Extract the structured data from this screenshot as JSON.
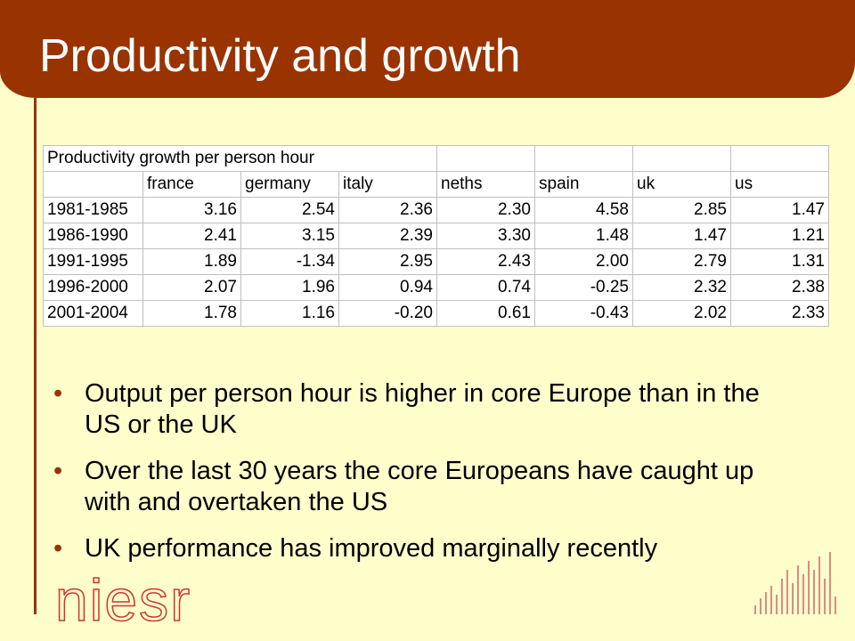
{
  "header": {
    "title": "Productivity and growth"
  },
  "table": {
    "caption": "Productivity growth per person hour",
    "columns": [
      "france",
      "germany",
      "italy",
      "neths",
      "spain",
      "uk",
      "us"
    ],
    "rows": [
      [
        "1981-1985",
        "3.16",
        "2.54",
        "2.36",
        "2.30",
        "4.58",
        "2.85",
        "1.47"
      ],
      [
        "1986-1990",
        "2.41",
        "3.15",
        "2.39",
        "3.30",
        "1.48",
        "1.47",
        "1.21"
      ],
      [
        "1991-1995",
        "1.89",
        "-1.34",
        "2.95",
        "2.43",
        "2.00",
        "2.79",
        "1.31"
      ],
      [
        "1996-2000",
        "2.07",
        "1.96",
        "0.94",
        "0.74",
        "-0.25",
        "2.32",
        "2.38"
      ],
      [
        "2001-2004",
        "1.78",
        "1.16",
        "-0.20",
        "0.61",
        "-0.43",
        "2.02",
        "2.33"
      ]
    ]
  },
  "bullets": [
    "Output per person hour is higher in core Europe than in the US or the UK",
    "Over the last 30 years the core Europeans have caught up with and overtaken the US",
    "UK performance has improved marginally recently"
  ],
  "logo": "niesr"
}
